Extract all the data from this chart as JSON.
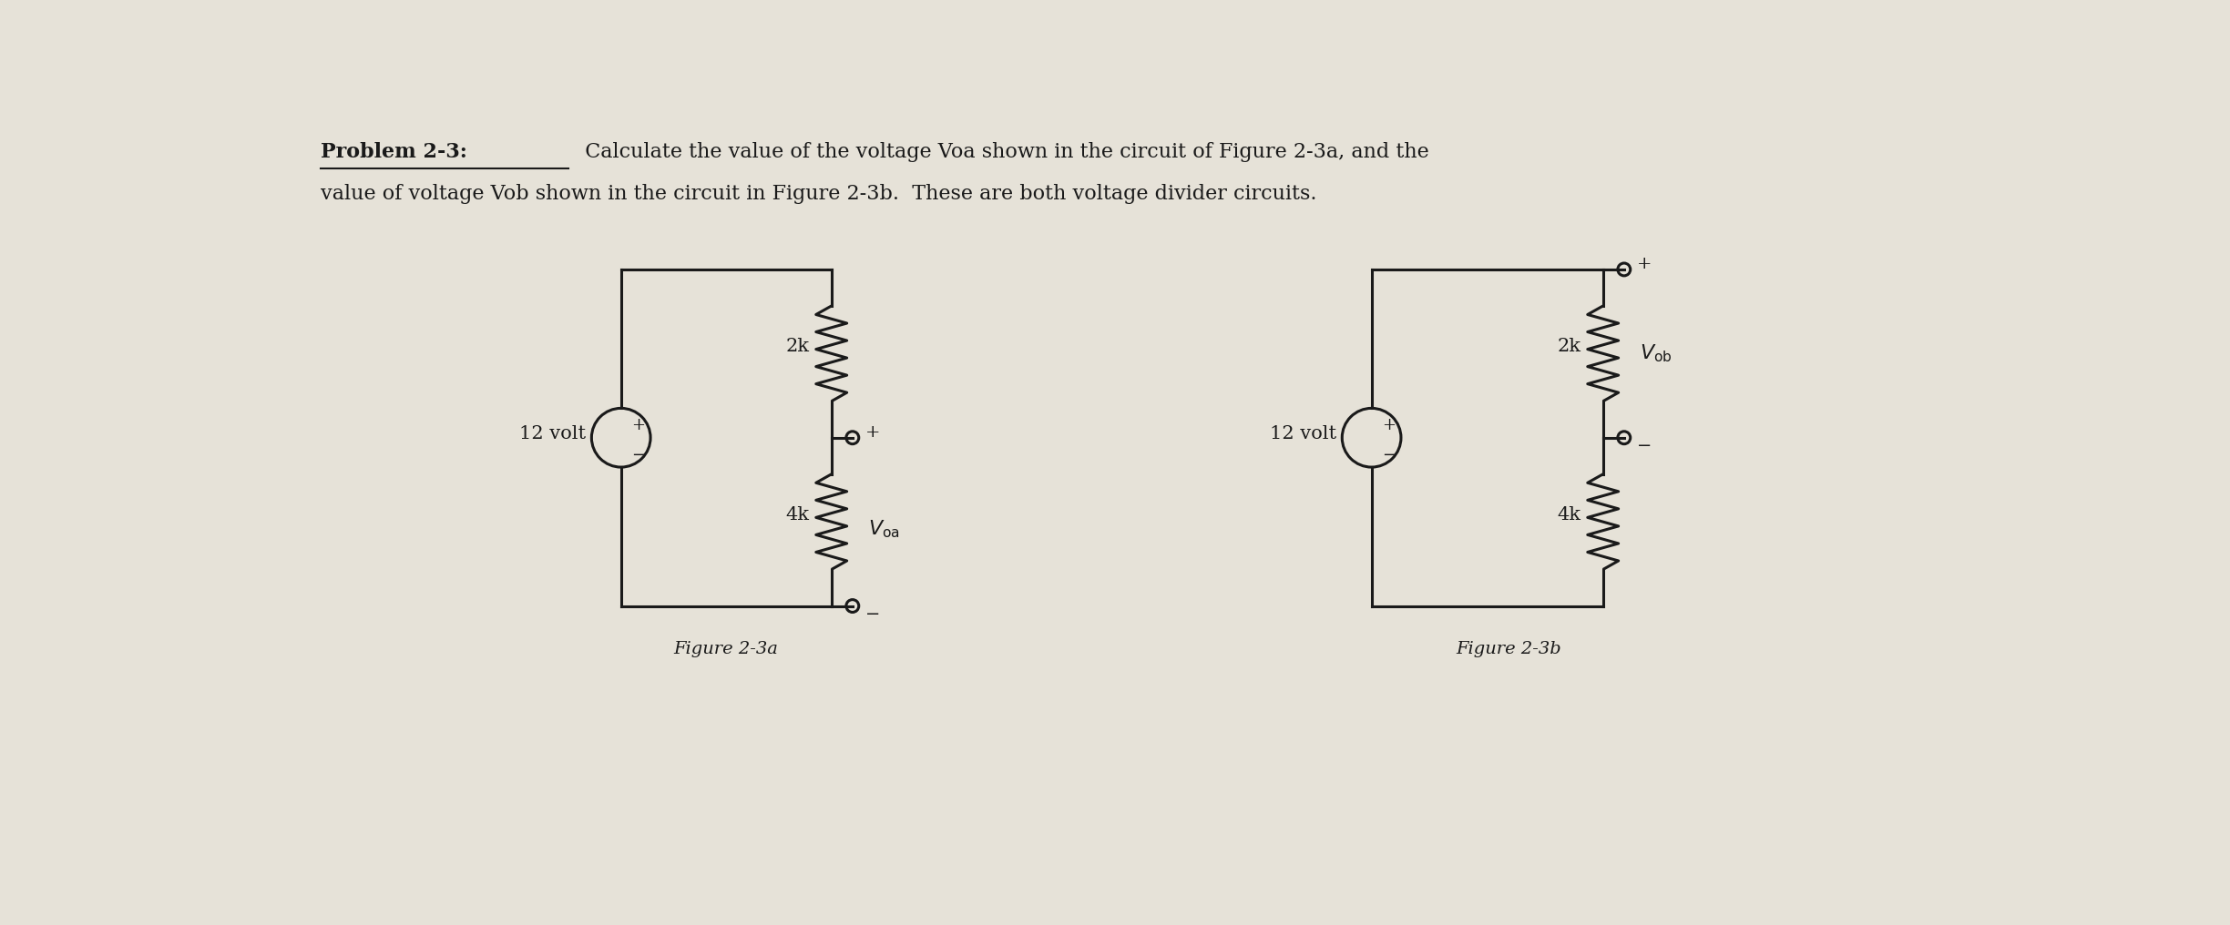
{
  "background_color": "#e6e2d8",
  "text_color": "#1a1a1a",
  "line_color": "#1a1a1a",
  "fig1_label": "Figure 2-3a",
  "fig2_label": "Figure 2-3b",
  "title_problem": "Problem 2-3:",
  "title_rest1": "  Calculate the value of the voltage Voa shown in the circuit of Figure 2-3a, and the",
  "title_line2": "value of voltage Vob shown in the circuit in Figure 2-3b.  These are both voltage divider circuits.",
  "font_size_title": 16,
  "font_size_circuit": 15
}
